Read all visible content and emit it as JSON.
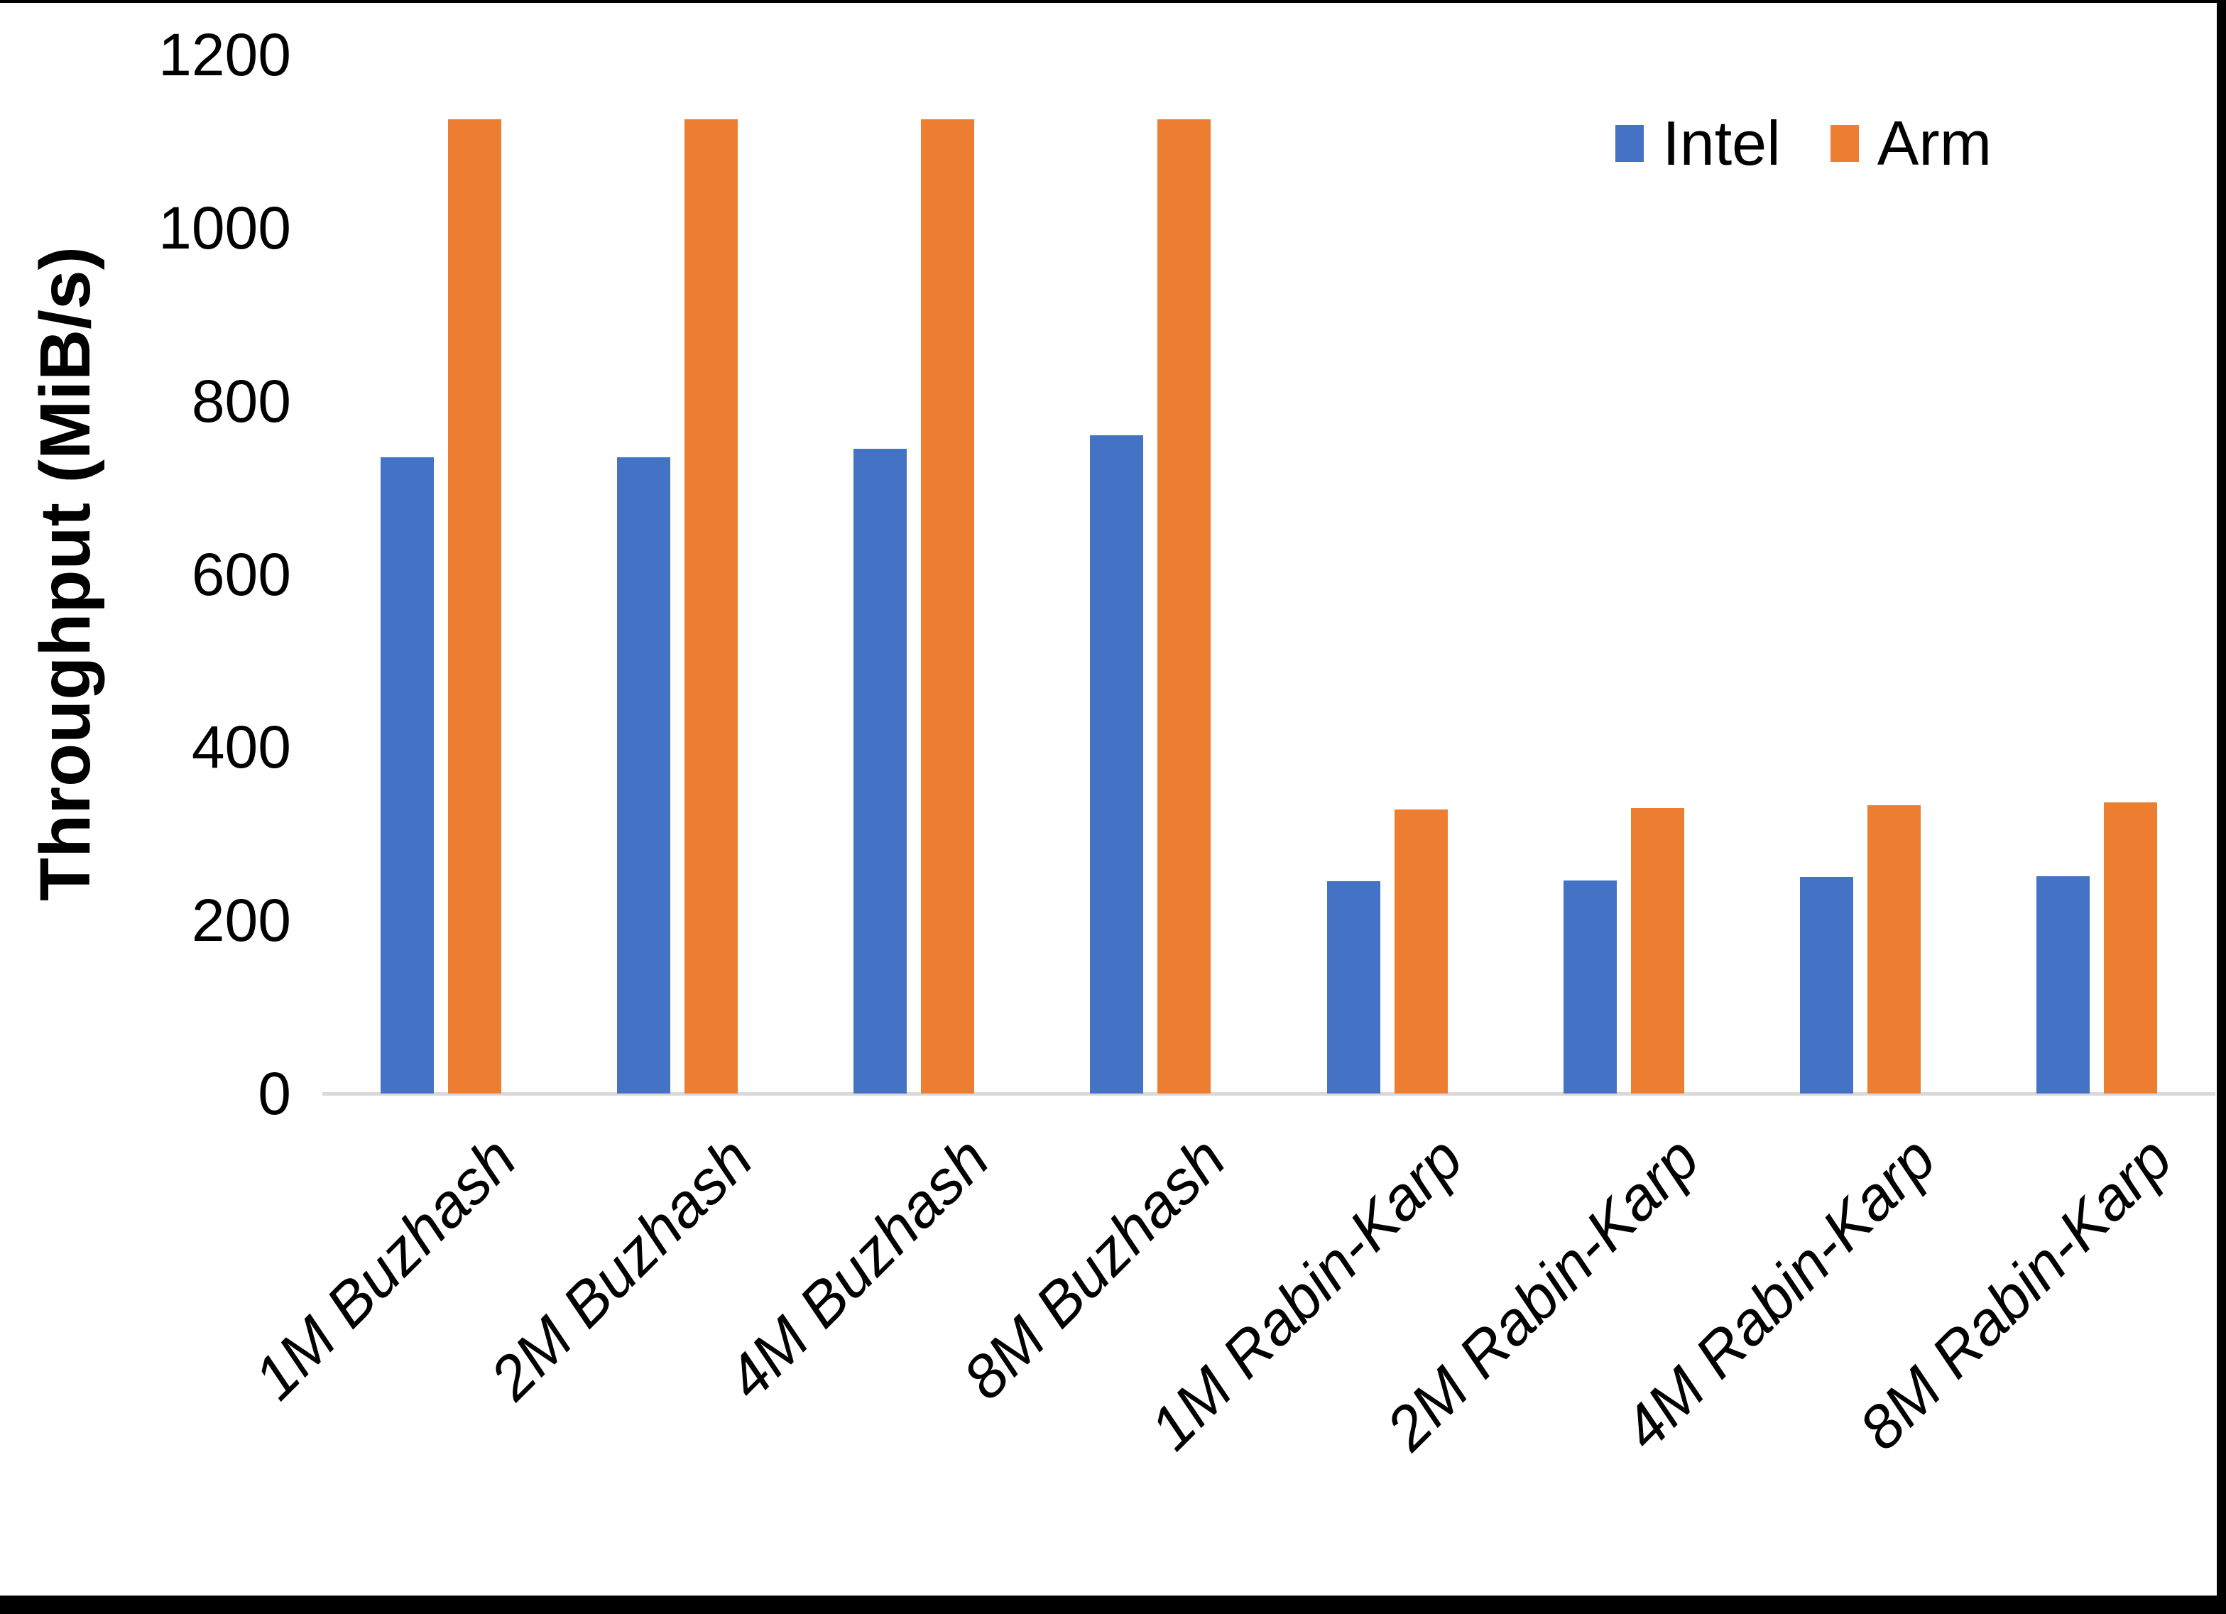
{
  "chart_data": {
    "type": "bar",
    "title": "",
    "categories": [
      "1M Buzhash",
      "2M Buzhash",
      "4M Buzhash",
      "8M Buzhash",
      "1M Rabin-Karp",
      "2M Rabin-Karp",
      "4M Rabin-Karp",
      "8M Rabin-Karp"
    ],
    "series": [
      {
        "name": "Intel",
        "color": "#4472C4",
        "values": [
          735,
          735,
          745,
          760,
          245,
          246,
          250,
          251
        ]
      },
      {
        "name": "Arm",
        "color": "#ED7D31",
        "values": [
          1125,
          1125,
          1125,
          1125,
          328,
          330,
          333,
          336
        ]
      }
    ],
    "xlabel": "",
    "ylabel": "Throughput (MiB/s)",
    "ylim": [
      0,
      1200
    ],
    "yticks": [
      0,
      200,
      400,
      600,
      800,
      1000,
      1200
    ],
    "grid": "off",
    "legend_position": "top-right"
  },
  "legend": {
    "items": [
      {
        "label": "Intel",
        "color": "#4472C4"
      },
      {
        "label": "Arm",
        "color": "#ED7D31"
      }
    ]
  }
}
